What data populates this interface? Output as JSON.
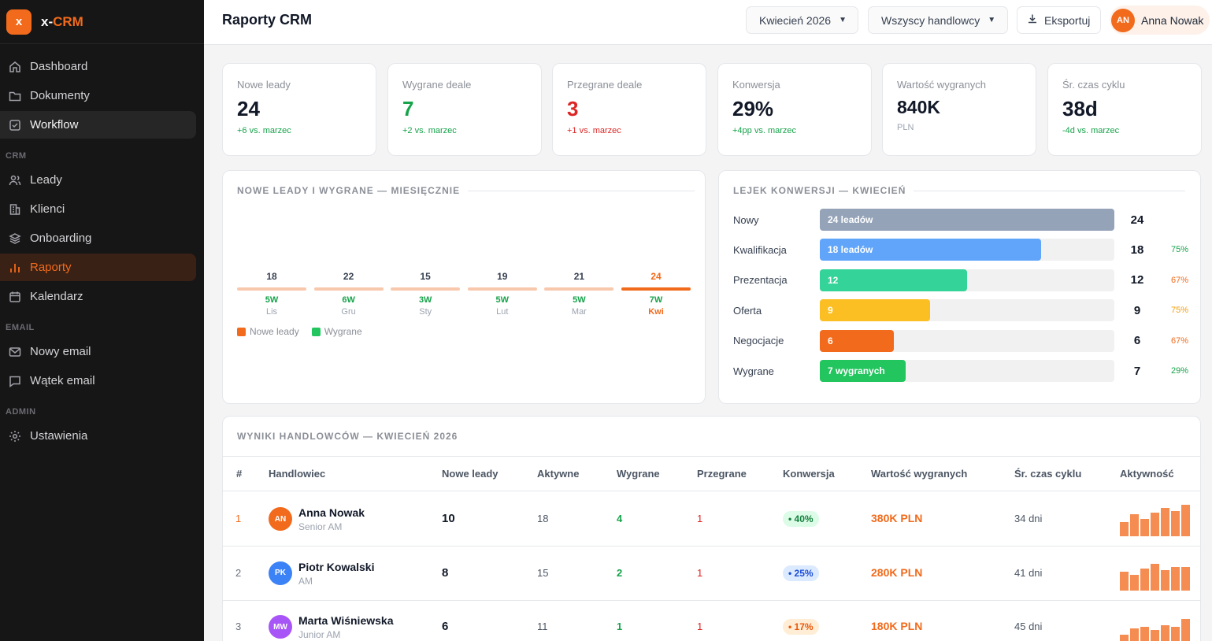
{
  "app": {
    "logo_letter": "x",
    "name_prefix": "x-",
    "name_suffix": "CRM",
    "accent": "#f26a1b"
  },
  "sidebar": {
    "items_main": [
      {
        "label": "Dashboard",
        "icon": "home-icon"
      },
      {
        "label": "Dokumenty",
        "icon": "folder-icon"
      },
      {
        "label": "Workflow",
        "icon": "checkbox-icon"
      }
    ],
    "section_crm": "CRM",
    "items_crm": [
      {
        "label": "Leady",
        "icon": "users-icon"
      },
      {
        "label": "Klienci",
        "icon": "building-icon"
      },
      {
        "label": "Onboarding",
        "icon": "layers-icon"
      },
      {
        "label": "Raporty",
        "icon": "bar-chart-icon"
      },
      {
        "label": "Kalendarz",
        "icon": "calendar-icon"
      }
    ],
    "section_email": "EMAIL",
    "items_email": [
      {
        "label": "Nowy email",
        "icon": "mail-icon"
      },
      {
        "label": "Wątek email",
        "icon": "message-icon"
      }
    ],
    "section_admin": "ADMIN",
    "items_admin": [
      {
        "label": "Ustawienia",
        "icon": "gear-icon"
      }
    ]
  },
  "header": {
    "title": "Raporty CRM",
    "month_select": "Kwiecień 2026",
    "rep_select": "Wszyscy handlowcy",
    "export_label": "Eksportuj",
    "user_initials": "AN",
    "user_name": "Anna Nowak"
  },
  "kpis": [
    {
      "label": "Nowe leady",
      "value": "24",
      "sub": "+6 vs. marzec",
      "value_color": "default",
      "sub_color": "green"
    },
    {
      "label": "Wygrane deale",
      "value": "7",
      "sub": "+2 vs. marzec",
      "value_color": "green",
      "sub_color": "green"
    },
    {
      "label": "Przegrane deale",
      "value": "3",
      "sub": "+1 vs. marzec",
      "value_color": "red",
      "sub_color": "red"
    },
    {
      "label": "Konwersja",
      "value": "29%",
      "sub": "+4pp vs. marzec",
      "value_color": "default",
      "sub_color": "green"
    },
    {
      "label": "Wartość wygranych",
      "value": "840K",
      "sub": "PLN",
      "value_color": "default",
      "sub_color": "gray"
    },
    {
      "label": "Śr. czas cyklu",
      "value": "38d",
      "sub": "-4d vs. marzec",
      "value_color": "default",
      "sub_color": "green"
    }
  ],
  "monthly": {
    "title": "NOWE LEADY I WYGRANE — MIESIĘCZNIE",
    "legend_leads": "Nowe leady",
    "legend_won": "Wygrane",
    "legend_colors": {
      "leads": "#f26a1b",
      "won": "#22c55e"
    }
  },
  "chart_data": {
    "type": "bar",
    "categories": [
      "Lis",
      "Gru",
      "Sty",
      "Lut",
      "Mar",
      "Kwi"
    ],
    "series": [
      {
        "name": "Nowe leady",
        "values": [
          18,
          22,
          15,
          19,
          21,
          24
        ]
      },
      {
        "name": "Wygrane",
        "values": [
          "5W",
          "6W",
          "3W",
          "5W",
          "5W",
          "7W"
        ]
      }
    ],
    "highlight_index": 5
  },
  "funnel": {
    "title": "LEJEK KONWERSJI — KWIECIEŃ",
    "max": 24,
    "rows": [
      {
        "stage": "Nowy",
        "value": 24,
        "bar_label": "24 leadów",
        "pct": "",
        "color": "#94a3b8"
      },
      {
        "stage": "Kwalifikacja",
        "value": 18,
        "bar_label": "18 leadów",
        "pct": "75%",
        "color": "#60a5fa"
      },
      {
        "stage": "Prezentacja",
        "value": 12,
        "bar_label": "12",
        "pct": "67%",
        "color": "#34d399"
      },
      {
        "stage": "Oferta",
        "value": 9,
        "bar_label": "9",
        "pct": "75%",
        "color": "#fbbf24"
      },
      {
        "stage": "Negocjacje",
        "value": 6,
        "bar_label": "6",
        "pct": "67%",
        "color": "#f26a1b"
      },
      {
        "stage": "Wygrane",
        "value": 7,
        "bar_label": "7 wygranych",
        "pct": "29%",
        "color": "#22c55e"
      }
    ]
  },
  "results": {
    "title": "WYNIKI HANDLOWCÓW — KWIECIEŃ 2026",
    "headers": [
      "#",
      "Handlowiec",
      "Nowe leady",
      "Aktywne",
      "Wygrane",
      "Przegrane",
      "Konwersja",
      "Wartość wygranych",
      "Śr. czas cyklu",
      "Aktywność"
    ],
    "rows": [
      {
        "rank": "1",
        "initials": "AN",
        "avatar_color": "#f26a1b",
        "name": "Anna Nowak",
        "role": "Senior AM",
        "new_leads": "10",
        "active": "18",
        "won": "4",
        "lost": "1",
        "conversion": "• 40%",
        "conv_level": "good",
        "value": "380K PLN",
        "cycle": "34 dni",
        "activity": [
          0.45,
          0.7,
          0.55,
          0.75,
          0.9,
          0.8,
          1.0
        ]
      },
      {
        "rank": "2",
        "initials": "PK",
        "avatar_color": "#3b82f6",
        "name": "Piotr Kowalski",
        "role": "AM",
        "new_leads": "8",
        "active": "15",
        "won": "2",
        "lost": "1",
        "conversion": "• 25%",
        "conv_level": "mid",
        "value": "280K PLN",
        "cycle": "41 dni",
        "activity": [
          0.6,
          0.5,
          0.7,
          0.85,
          0.65,
          0.75,
          0.75
        ]
      },
      {
        "rank": "3",
        "initials": "MW",
        "avatar_color": "#a855f7",
        "name": "Marta Wiśniewska",
        "role": "Junior AM",
        "new_leads": "6",
        "active": "11",
        "won": "1",
        "lost": "1",
        "conversion": "• 17%",
        "conv_level": "low",
        "value": "180K PLN",
        "cycle": "45 dni",
        "activity": [
          0.3,
          0.5,
          0.55,
          0.45,
          0.6,
          0.55,
          0.8
        ]
      }
    ]
  }
}
